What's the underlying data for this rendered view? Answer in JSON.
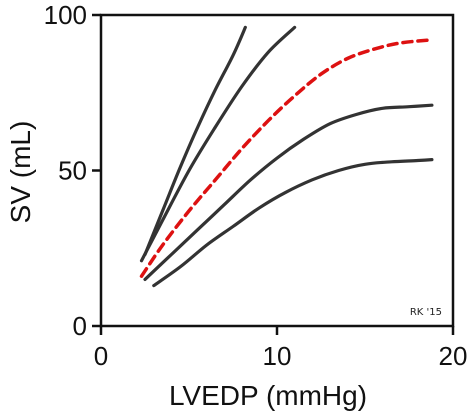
{
  "chart_data": {
    "type": "line",
    "title": "",
    "xlabel": "LVEDP (mmHg)",
    "ylabel": "SV (mL)",
    "xlim": [
      0,
      20
    ],
    "ylim": [
      0,
      100
    ],
    "xticks": [
      0,
      10,
      20
    ],
    "yticks": [
      0,
      50,
      100
    ],
    "xtick_labels": [
      "0",
      "10",
      "20"
    ],
    "ytick_labels": [
      "0",
      "50",
      "100"
    ],
    "grid": false,
    "legend": "none",
    "annotations": [
      {
        "text": "RK '15",
        "position": "bottom-right"
      }
    ],
    "series": [
      {
        "color": "#333333",
        "dash": "solid",
        "x": [
          2.5,
          3.5,
          4.5,
          5.5,
          6.5,
          7.5,
          8.2
        ],
        "y": [
          23,
          37,
          51,
          64,
          76,
          87,
          96
        ]
      },
      {
        "color": "#333333",
        "dash": "solid",
        "x": [
          2.3,
          3.5,
          5,
          6.5,
          8,
          9.5,
          11
        ],
        "y": [
          21,
          34,
          50,
          64,
          77,
          88,
          96
        ]
      },
      {
        "color": "#dd1111",
        "dash": "dashed",
        "x": [
          2.3,
          3.5,
          5,
          6.5,
          8,
          9.5,
          11,
          12.5,
          14,
          15.5,
          17,
          18.8
        ],
        "y": [
          16,
          26,
          37,
          47,
          57,
          66,
          74,
          81,
          86,
          89,
          91,
          92
        ]
      },
      {
        "color": "#333333",
        "dash": "solid",
        "x": [
          2.5,
          4,
          5.5,
          7,
          8.5,
          10,
          11.5,
          13,
          14.5,
          16,
          17.5,
          18.8
        ],
        "y": [
          15,
          23,
          31,
          39,
          47,
          54,
          60,
          65,
          68,
          70,
          70.5,
          71
        ]
      },
      {
        "color": "#333333",
        "dash": "solid",
        "x": [
          3,
          4.5,
          6,
          7.5,
          9,
          10.5,
          12,
          13.5,
          15,
          16.5,
          18,
          18.8
        ],
        "y": [
          13,
          19,
          26,
          32,
          38,
          43,
          47,
          50,
          52,
          52.8,
          53.2,
          53.5
        ]
      }
    ]
  }
}
